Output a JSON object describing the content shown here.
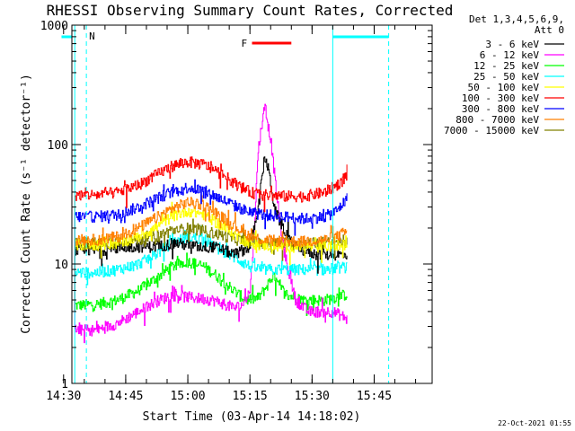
{
  "chart_data": {
    "type": "line",
    "title": "RHESSI Observing Summary Count Rates, Corrected",
    "xlabel": "Start Time (03-Apr-14 14:18:02)",
    "ylabel": "Corrected Count Rate (s⁻¹ detector⁻¹)",
    "yscale": "log",
    "ylim": [
      1,
      1000
    ],
    "xlim_minutes": [
      14.0,
      101.0
    ],
    "x_ticks": [
      {
        "label": "14:30",
        "min": 12.0
      },
      {
        "label": "14:45",
        "min": 27.0
      },
      {
        "label": "15:00",
        "min": 42.0
      },
      {
        "label": "15:15",
        "min": 57.0
      },
      {
        "label": "15:30",
        "min": 72.0
      },
      {
        "label": "15:45",
        "min": 87.0
      }
    ],
    "y_ticks": [
      {
        "label": "1",
        "value": 1
      },
      {
        "label": "10",
        "value": 10
      },
      {
        "label": "100",
        "value": 100
      },
      {
        "label": "1000",
        "value": 1000
      }
    ],
    "detector_info": [
      "Det 1,3,4,5,6,9,",
      "Att 0"
    ],
    "series": [
      {
        "name": "3 - 6 keV",
        "color": "#000000",
        "x": [
          14.7,
          20,
          28,
          34,
          39,
          44,
          48,
          51,
          53,
          55,
          57,
          59,
          60.5,
          61.5,
          63,
          65,
          67,
          70,
          73,
          76,
          79,
          80.5
        ],
        "y": [
          13,
          13,
          14,
          14,
          15,
          14,
          14,
          13,
          12,
          13,
          14,
          30,
          80,
          60,
          28,
          20,
          15,
          13,
          12,
          12,
          12,
          12
        ]
      },
      {
        "name": "6 - 12 keV",
        "color": "#ff00ff",
        "x": [
          14.7,
          20,
          25,
          30,
          34,
          38,
          44,
          48,
          51,
          53,
          55,
          57,
          58,
          59,
          60.5,
          62,
          63.5,
          65,
          66.5,
          68,
          71,
          74,
          77,
          80.5
        ],
        "y": [
          2.8,
          2.8,
          3.2,
          4,
          4.8,
          5.5,
          5.2,
          5,
          4.6,
          4.3,
          4.5,
          6,
          20,
          95,
          210,
          110,
          35,
          14,
          8,
          5,
          4,
          4,
          4,
          3.5
        ]
      },
      {
        "name": "12 - 25 keV",
        "color": "#00ff00",
        "x": [
          14.7,
          20,
          25,
          30,
          34,
          38,
          42,
          46,
          50,
          53,
          56,
          59,
          61,
          62.5,
          64,
          66,
          70,
          75,
          80.5
        ],
        "y": [
          4.5,
          4.6,
          5,
          6,
          7.5,
          9.5,
          10.5,
          9.5,
          7.5,
          6,
          5,
          5.2,
          6.5,
          8,
          6.5,
          5.5,
          5,
          5,
          5.6
        ]
      },
      {
        "name": "25 - 50 keV",
        "color": "#00ffff",
        "x": [
          14.7,
          20,
          25,
          30,
          34,
          38,
          42,
          46,
          50,
          54,
          57,
          60,
          65,
          70,
          75,
          80.5
        ],
        "y": [
          8.5,
          8.5,
          9,
          10,
          12,
          15,
          17,
          16,
          13,
          11,
          9.5,
          9,
          9,
          9,
          9,
          9.5
        ]
      },
      {
        "name": "50 - 100 keV",
        "color": "#ffff00",
        "x": [
          14.7,
          20,
          25,
          30,
          34,
          38,
          42,
          46,
          50,
          54,
          57,
          60,
          65,
          70,
          75,
          80.5
        ],
        "y": [
          14.5,
          14.5,
          15,
          17,
          20,
          25,
          28,
          26,
          21,
          17,
          15,
          14.5,
          14,
          14,
          14,
          14.5
        ]
      },
      {
        "name": "100 - 300 keV",
        "color": "#ff0000",
        "x": [
          14.7,
          20,
          25,
          30,
          34,
          38,
          42,
          46,
          50,
          54,
          57,
          60,
          65,
          70,
          75,
          78,
          80.5
        ],
        "y": [
          38,
          38,
          40,
          46,
          55,
          66,
          72,
          68,
          57,
          46,
          40,
          38,
          37,
          37,
          40,
          46,
          56
        ]
      },
      {
        "name": "300 - 800 keV",
        "color": "#0000ff",
        "x": [
          14.7,
          20,
          25,
          30,
          34,
          38,
          42,
          46,
          50,
          54,
          57,
          60,
          65,
          70,
          75,
          78,
          80.5
        ],
        "y": [
          25,
          25,
          26,
          30,
          35,
          40,
          44,
          41,
          35,
          30,
          27,
          26,
          25,
          24,
          25,
          28,
          36
        ]
      },
      {
        "name": "800 - 7000 keV",
        "color": "#ff8000",
        "x": [
          14.7,
          20,
          25,
          30,
          34,
          38,
          42,
          46,
          50,
          54,
          57,
          60,
          65,
          70,
          75,
          78,
          80.5
        ],
        "y": [
          16,
          16,
          17,
          20,
          24,
          29,
          33,
          31,
          25,
          20,
          17,
          16,
          15.5,
          15.5,
          16,
          17,
          19
        ]
      },
      {
        "name": "7000 - 15000 keV",
        "color": "#808000",
        "x": [
          14.7,
          20,
          25,
          30,
          34,
          38,
          42,
          46,
          50,
          54,
          57,
          60,
          65,
          70,
          75,
          80.5
        ],
        "y": [
          15,
          15,
          15.5,
          16,
          17,
          19,
          20,
          19,
          17.5,
          16,
          15.5,
          15,
          15,
          15,
          15,
          15.5
        ]
      }
    ],
    "annotations": {
      "flare_label": "F",
      "flare_x_range": [
        57.5,
        67.0
      ],
      "flare_color": "#ff0000",
      "night_label": "N",
      "night_color": "#00ffff",
      "night_bars_x": [
        [
          14.0,
          11.5
        ],
        [
          77.0,
          90.5
        ]
      ],
      "night_solid_lines_x": [
        14.7,
        77.0
      ],
      "night_dashed_lines_x": [
        17.5,
        90.5
      ]
    }
  },
  "timestamp": "22-Oct-2021 01:55"
}
